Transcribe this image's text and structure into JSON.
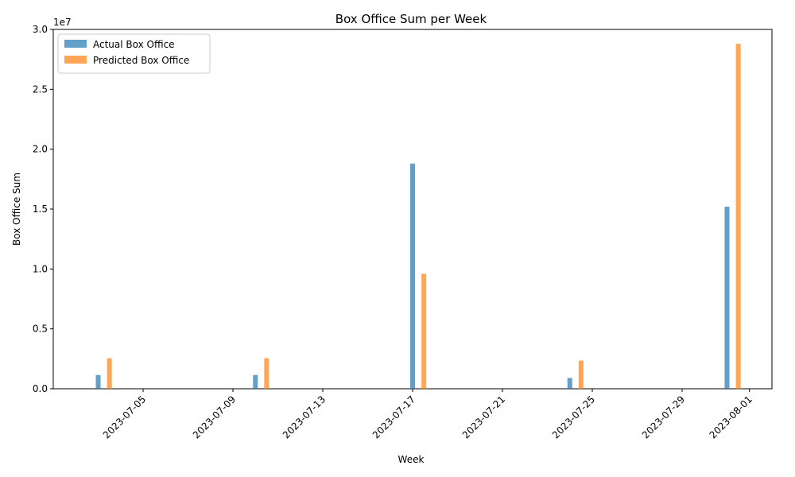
{
  "chart_data": {
    "type": "bar",
    "title": "Box Office Sum per Week",
    "xlabel": "Week",
    "ylabel": "Box Office Sum",
    "y_offset_label": "1e7",
    "x_ticks": [
      "2023-07-05",
      "2023-07-09",
      "2023-07-13",
      "2023-07-17",
      "2023-07-21",
      "2023-07-25",
      "2023-07-29",
      "2023-08-01"
    ],
    "y_ticks": [
      "0.0",
      "0.5",
      "1.0",
      "1.5",
      "2.0",
      "2.5",
      "3.0"
    ],
    "ylim": [
      0,
      30000000
    ],
    "xlim": [
      "2023-07-01",
      "2023-08-02"
    ],
    "weeks": [
      "2023-07-03",
      "2023-07-10",
      "2023-07-17",
      "2023-07-24",
      "2023-07-31"
    ],
    "series": [
      {
        "name": "Actual Box Office",
        "color": "#1f77b4",
        "values": [
          1150000,
          1150000,
          18800000,
          900000,
          15200000
        ]
      },
      {
        "name": "Predicted Box Office",
        "color": "#ff7f0e",
        "values": [
          2550000,
          2550000,
          9600000,
          2350000,
          28800000
        ]
      }
    ],
    "legend_position": "top-left",
    "grid": false
  }
}
